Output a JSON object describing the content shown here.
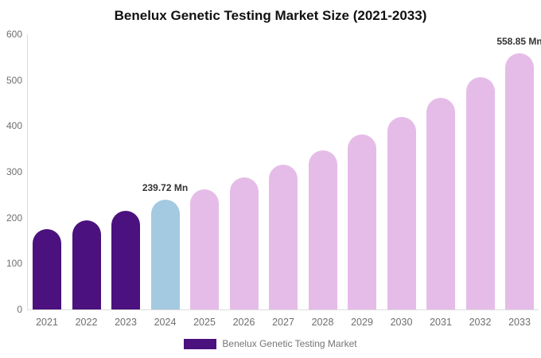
{
  "chart": {
    "title": "Benelux Genetic Testing Market Size (2021-2033)"
  },
  "legend": {
    "label": "Benelux Genetic Testing Market",
    "swatch_color": "#4B117E"
  },
  "chart_data": {
    "type": "bar",
    "title": "Benelux Genetic Testing Market Size (2021-2033)",
    "categories": [
      "2021",
      "2022",
      "2023",
      "2024",
      "2025",
      "2026",
      "2027",
      "2028",
      "2029",
      "2030",
      "2031",
      "2032",
      "2033"
    ],
    "values": [
      176,
      194,
      215,
      239.72,
      262,
      288,
      316,
      347,
      381,
      419,
      461,
      507,
      558.85
    ],
    "unit": "Mn",
    "xlabel": "",
    "ylabel": "",
    "ylim": [
      0,
      600
    ],
    "yticks": [
      0,
      100,
      200,
      300,
      400,
      500,
      600
    ],
    "grid": false,
    "legend_position": "bottom",
    "bar_colors": [
      "#4B117E",
      "#4B117E",
      "#4B117E",
      "#A3CAE0",
      "#E5BCE8",
      "#E5BCE8",
      "#E5BCE8",
      "#E5BCE8",
      "#E5BCE8",
      "#E5BCE8",
      "#E5BCE8",
      "#E5BCE8",
      "#E5BCE8"
    ],
    "colors": {
      "historical": "#4B117E",
      "base_year": "#A3CAE0",
      "forecast": "#E5BCE8"
    },
    "annotations": [
      {
        "category": "2024",
        "text": "239.72 Mn"
      },
      {
        "category": "2033",
        "text": "558.85 Mn"
      }
    ]
  }
}
